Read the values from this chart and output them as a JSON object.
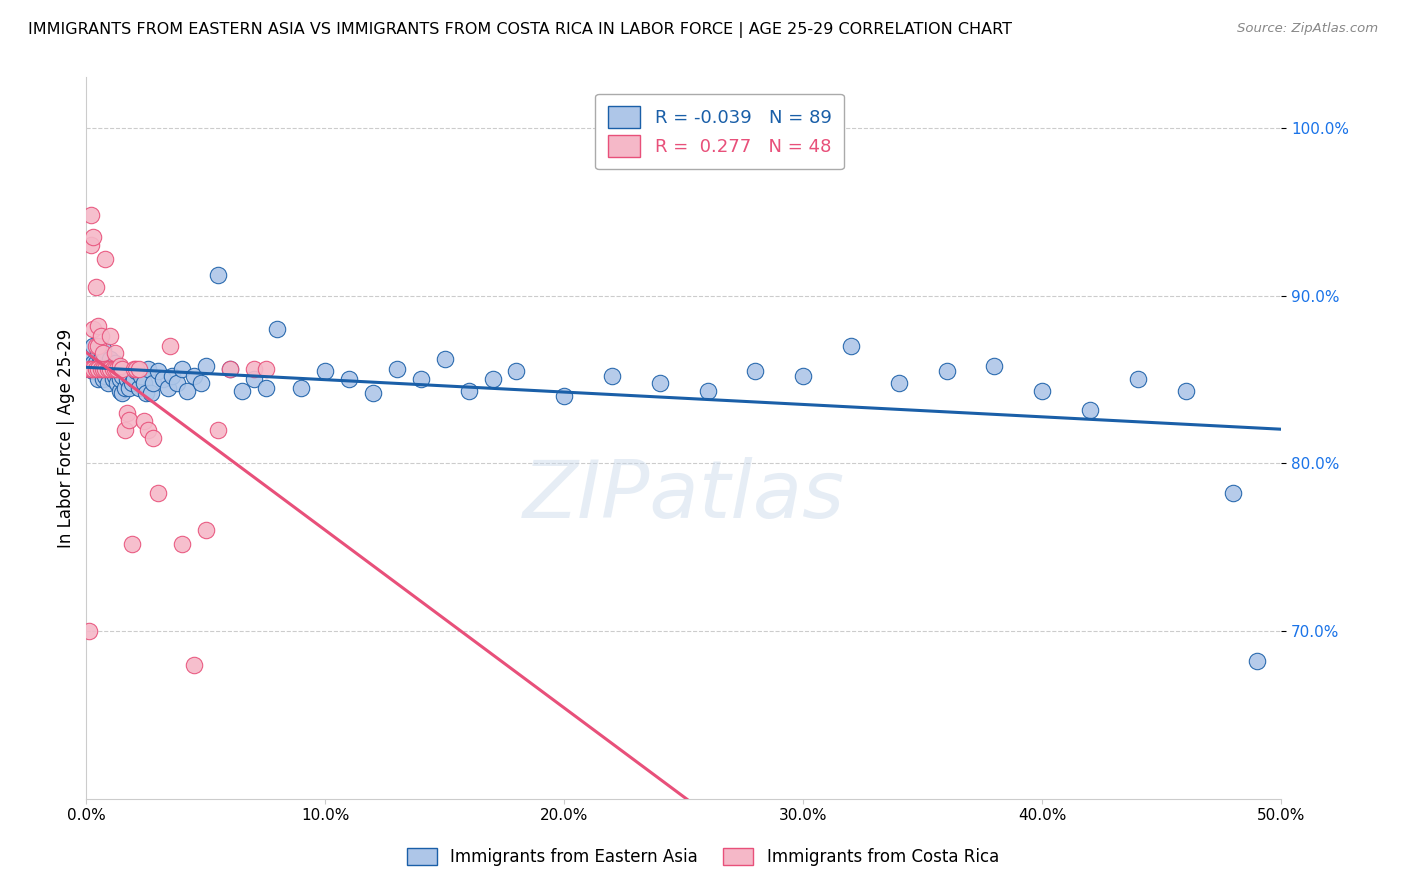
{
  "title": "IMMIGRANTS FROM EASTERN ASIA VS IMMIGRANTS FROM COSTA RICA IN LABOR FORCE | AGE 25-29 CORRELATION CHART",
  "source": "Source: ZipAtlas.com",
  "xlabel": "",
  "ylabel": "In Labor Force | Age 25-29",
  "x_min": 0.0,
  "x_max": 0.5,
  "y_min": 0.6,
  "y_max": 1.03,
  "x_ticks": [
    0.0,
    0.1,
    0.2,
    0.3,
    0.4,
    0.5
  ],
  "x_tick_labels": [
    "0.0%",
    "10.0%",
    "20.0%",
    "30.0%",
    "40.0%",
    "50.0%"
  ],
  "y_ticks": [
    0.7,
    0.8,
    0.9,
    1.0
  ],
  "y_tick_labels": [
    "70.0%",
    "80.0%",
    "90.0%",
    "100.0%"
  ],
  "blue_R": "-0.039",
  "blue_N": "89",
  "pink_R": "0.277",
  "pink_N": "48",
  "blue_color": "#aec6e8",
  "pink_color": "#f5b8c8",
  "blue_line_color": "#1a5fa8",
  "pink_line_color": "#e8507a",
  "blue_label": "Immigrants from Eastern Asia",
  "pink_label": "Immigrants from Costa Rica",
  "watermark": "ZIPatlas",
  "blue_scatter_x": [
    0.001,
    0.002,
    0.002,
    0.003,
    0.003,
    0.003,
    0.004,
    0.004,
    0.005,
    0.005,
    0.005,
    0.006,
    0.006,
    0.007,
    0.007,
    0.008,
    0.008,
    0.008,
    0.009,
    0.009,
    0.01,
    0.01,
    0.011,
    0.011,
    0.012,
    0.012,
    0.013,
    0.013,
    0.014,
    0.014,
    0.015,
    0.015,
    0.016,
    0.016,
    0.017,
    0.018,
    0.018,
    0.019,
    0.02,
    0.021,
    0.022,
    0.023,
    0.024,
    0.025,
    0.026,
    0.027,
    0.028,
    0.03,
    0.032,
    0.034,
    0.036,
    0.038,
    0.04,
    0.042,
    0.045,
    0.048,
    0.05,
    0.055,
    0.06,
    0.065,
    0.07,
    0.075,
    0.08,
    0.09,
    0.1,
    0.11,
    0.12,
    0.13,
    0.14,
    0.15,
    0.16,
    0.17,
    0.18,
    0.2,
    0.22,
    0.24,
    0.26,
    0.28,
    0.3,
    0.32,
    0.34,
    0.36,
    0.38,
    0.4,
    0.42,
    0.44,
    0.46,
    0.48,
    0.49
  ],
  "blue_scatter_y": [
    0.856,
    0.858,
    0.862,
    0.855,
    0.86,
    0.87,
    0.855,
    0.86,
    0.85,
    0.858,
    0.866,
    0.855,
    0.862,
    0.85,
    0.868,
    0.852,
    0.858,
    0.863,
    0.848,
    0.858,
    0.855,
    0.862,
    0.85,
    0.856,
    0.852,
    0.86,
    0.848,
    0.856,
    0.843,
    0.85,
    0.842,
    0.852,
    0.845,
    0.855,
    0.85,
    0.845,
    0.852,
    0.848,
    0.85,
    0.855,
    0.845,
    0.852,
    0.848,
    0.842,
    0.856,
    0.842,
    0.848,
    0.855,
    0.85,
    0.845,
    0.852,
    0.848,
    0.856,
    0.843,
    0.852,
    0.848,
    0.858,
    0.912,
    0.856,
    0.843,
    0.85,
    0.845,
    0.88,
    0.845,
    0.855,
    0.85,
    0.842,
    0.856,
    0.85,
    0.862,
    0.843,
    0.85,
    0.855,
    0.84,
    0.852,
    0.848,
    0.843,
    0.855,
    0.852,
    0.87,
    0.848,
    0.855,
    0.858,
    0.843,
    0.832,
    0.85,
    0.843,
    0.782,
    0.682
  ],
  "pink_scatter_x": [
    0.001,
    0.001,
    0.002,
    0.002,
    0.002,
    0.003,
    0.003,
    0.003,
    0.004,
    0.004,
    0.004,
    0.005,
    0.005,
    0.005,
    0.006,
    0.006,
    0.007,
    0.007,
    0.008,
    0.008,
    0.009,
    0.01,
    0.01,
    0.011,
    0.012,
    0.012,
    0.013,
    0.014,
    0.015,
    0.016,
    0.017,
    0.018,
    0.019,
    0.02,
    0.021,
    0.022,
    0.024,
    0.026,
    0.028,
    0.03,
    0.035,
    0.04,
    0.045,
    0.05,
    0.055,
    0.06,
    0.07,
    0.075
  ],
  "pink_scatter_y": [
    0.856,
    0.7,
    0.856,
    0.93,
    0.948,
    0.856,
    0.88,
    0.935,
    0.856,
    0.87,
    0.905,
    0.856,
    0.87,
    0.882,
    0.856,
    0.876,
    0.856,
    0.866,
    0.856,
    0.922,
    0.856,
    0.856,
    0.876,
    0.856,
    0.856,
    0.866,
    0.856,
    0.858,
    0.856,
    0.82,
    0.83,
    0.826,
    0.752,
    0.856,
    0.856,
    0.856,
    0.825,
    0.82,
    0.815,
    0.782,
    0.87,
    0.752,
    0.68,
    0.76,
    0.82,
    0.856,
    0.856,
    0.856
  ]
}
